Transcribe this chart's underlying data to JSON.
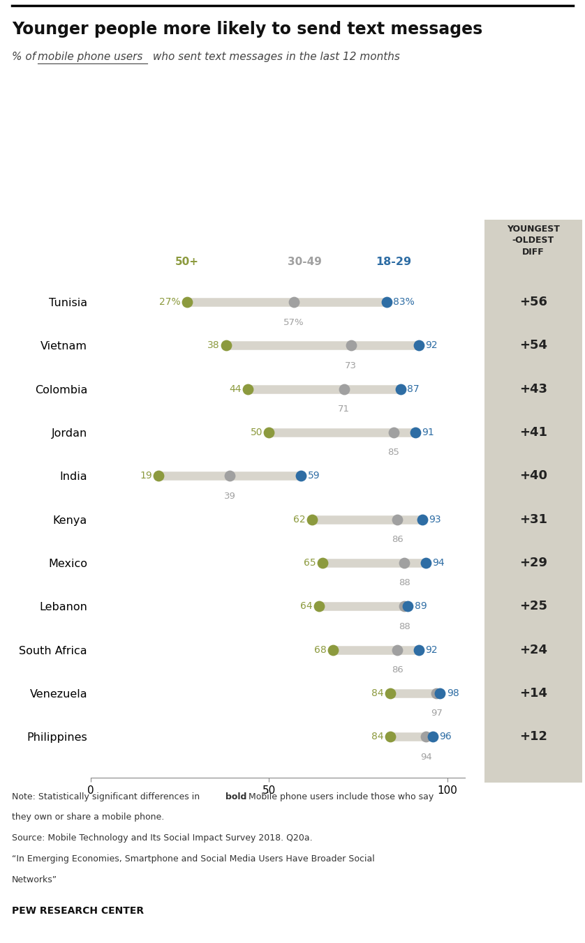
{
  "title": "Younger people more likely to send text messages",
  "subtitle_part1": "% of ",
  "subtitle_underline": "mobile phone users",
  "subtitle_part2": " who sent text messages in the last 12 months",
  "countries": [
    "Tunisia",
    "Vietnam",
    "Colombia",
    "Jordan",
    "India",
    "Kenya",
    "Mexico",
    "Lebanon",
    "South Africa",
    "Venezuela",
    "Philippines"
  ],
  "age_50plus": [
    27,
    38,
    44,
    50,
    19,
    62,
    65,
    64,
    68,
    84,
    84
  ],
  "age_30_49": [
    57,
    73,
    71,
    85,
    39,
    86,
    88,
    88,
    86,
    97,
    94
  ],
  "age_18_29": [
    83,
    92,
    87,
    91,
    59,
    93,
    94,
    89,
    92,
    98,
    96
  ],
  "labels_50plus": [
    "27%",
    "38",
    "44",
    "50",
    "19",
    "62",
    "65",
    "64",
    "68",
    "84",
    "84"
  ],
  "labels_30_49": [
    "57%",
    "73",
    "71",
    "85",
    "39",
    "86",
    "88",
    "88",
    "86",
    "97",
    "94"
  ],
  "labels_18_29": [
    "83%",
    "92",
    "87",
    "91",
    "59",
    "93",
    "94",
    "89",
    "92",
    "98",
    "96"
  ],
  "diff": [
    "+56",
    "+54",
    "+43",
    "+41",
    "+40",
    "+31",
    "+29",
    "+25",
    "+24",
    "+14",
    "+12"
  ],
  "color_50plus": "#8c9a3e",
  "color_30_49": "#a0a0a0",
  "color_18_29": "#2e6da4",
  "color_line": "#d8d5cc",
  "bg_diff_col": "#d3d0c5",
  "source_label": "PEW RESEARCH CENTER",
  "col_header_50": "50+",
  "col_header_30": "30-49",
  "col_header_18": "18-29",
  "col_header_diff": "YOUNGEST\n-OLDEST\nDIFF",
  "xlim": [
    0,
    105
  ],
  "note_line1": "Note: Statistically significant differences in ",
  "note_bold": "bold",
  "note_line1b": ". Mobile phone users include those who say",
  "note_line2": "they own or share a mobile phone.",
  "note_line3": "Source: Mobile Technology and Its Social Impact Survey 2018. Q20a.",
  "note_line4": "“In Emerging Economies, Smartphone and Social Media Users Have Broader Social",
  "note_line5": "Networks”"
}
